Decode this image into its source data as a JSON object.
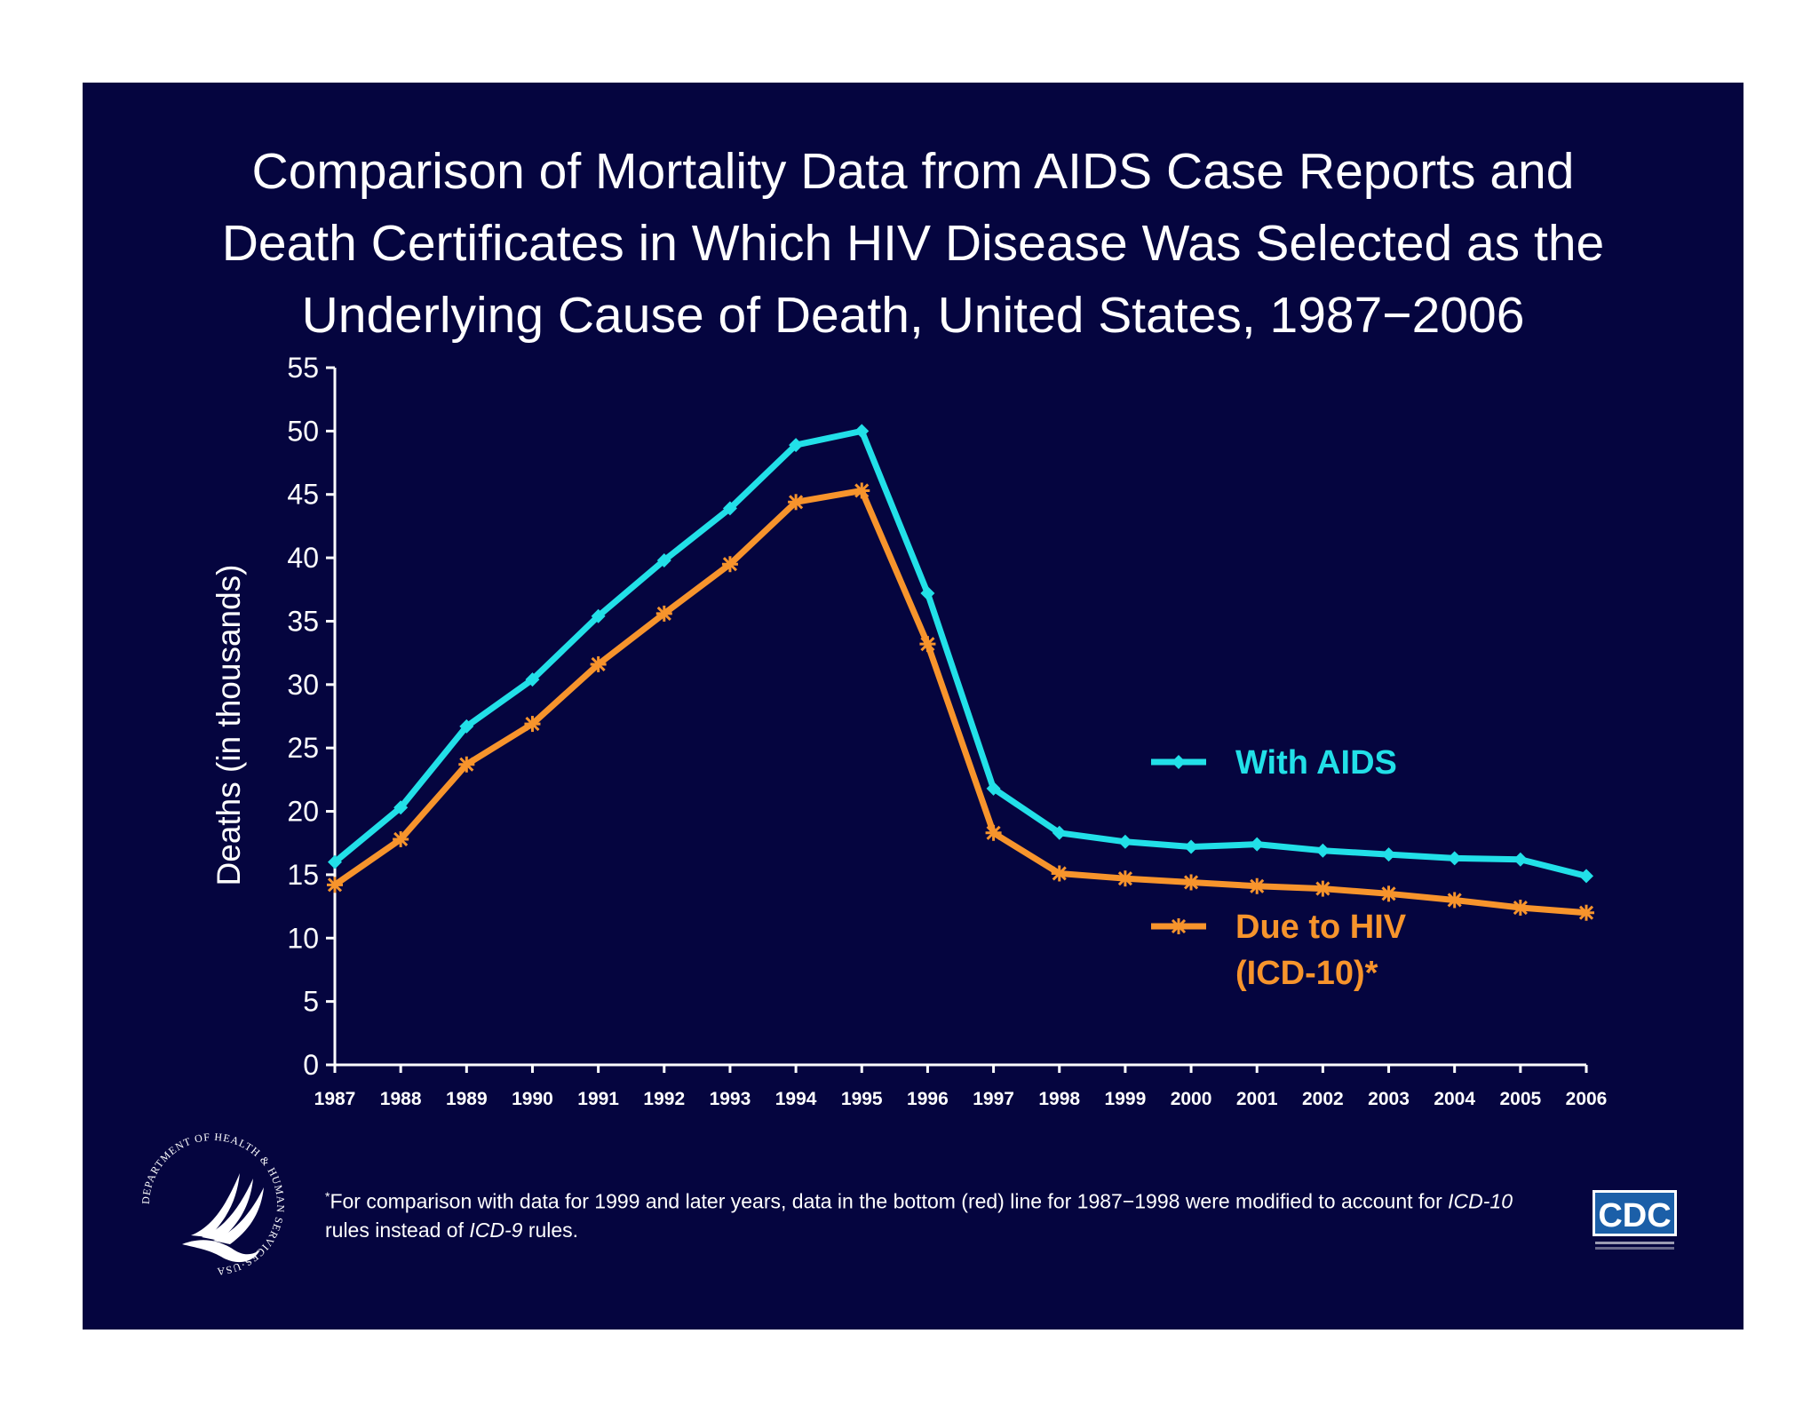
{
  "title_lines": [
    "Comparison of Mortality Data from AIDS Case Reports and",
    "Death Certificates in Which HIV Disease Was Selected as the",
    "Underlying Cause of Death, United States, 1987−2006"
  ],
  "footnote": {
    "marker": "*",
    "line1_a": "For comparison with data for 1999 and later years, data in the bottom (red) line for 1987−1998 were modified to account for ",
    "line1_italic": "ICD-10",
    "line2_a": "rules instead of ",
    "line2_italic": "ICD-9",
    "line2_b": " rules."
  },
  "logos": {
    "hhs_text": "DEPARTMENT OF HEALTH & HUMAN SERVICES·USA",
    "cdc_text": "CDC"
  },
  "chart_data": {
    "type": "line",
    "title": "Comparison of Mortality Data from AIDS Case Reports and Death Certificates in Which HIV Disease Was Selected as the Underlying Cause of Death, United States, 1987−2006",
    "xlabel": "",
    "ylabel": "Deaths (in thousands)",
    "ylim": [
      0,
      55
    ],
    "yticks": [
      0,
      5,
      10,
      15,
      20,
      25,
      30,
      35,
      40,
      45,
      50,
      55
    ],
    "categories": [
      "1987",
      "1988",
      "1989",
      "1990",
      "1991",
      "1992",
      "1993",
      "1994",
      "1995",
      "1996",
      "1997",
      "1998",
      "1999",
      "2000",
      "2001",
      "2002",
      "2003",
      "2004",
      "2005",
      "2006"
    ],
    "grid": false,
    "series": [
      {
        "name": "With AIDS",
        "legend_lines": [
          "With AIDS"
        ],
        "color": "#22e0e8",
        "marker": "diamond",
        "values": [
          16.0,
          20.3,
          26.7,
          30.4,
          35.4,
          39.8,
          43.9,
          48.9,
          50.0,
          37.2,
          21.8,
          18.3,
          17.6,
          17.2,
          17.4,
          16.9,
          16.6,
          16.3,
          16.2,
          14.9
        ]
      },
      {
        "name": "Due to HIV (ICD-10)*",
        "legend_lines": [
          "Due to HIV",
          "(ICD-10)*"
        ],
        "color": "#f7942c",
        "marker": "asterisk",
        "values": [
          14.2,
          17.8,
          23.7,
          26.9,
          31.6,
          35.6,
          39.5,
          44.4,
          45.3,
          33.2,
          18.3,
          15.1,
          14.7,
          14.4,
          14.1,
          13.9,
          13.5,
          13.0,
          12.4,
          12.0
        ]
      }
    ],
    "legend": "right"
  }
}
